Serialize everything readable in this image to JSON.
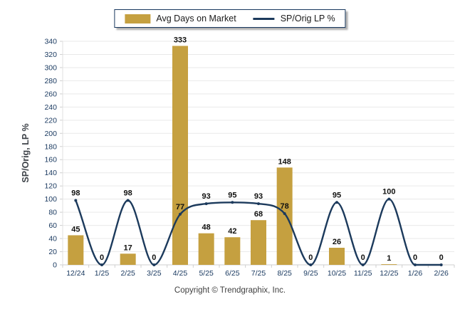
{
  "legend": {
    "items": [
      {
        "swatch": "bar-swatch",
        "label": "Avg Days on Market"
      },
      {
        "swatch": "line-swatch",
        "label": "SP/Orig LP %"
      }
    ]
  },
  "footer": {
    "copyright": "Copyright © Trendgraphix, Inc."
  },
  "chart_data": {
    "type": "bar+line",
    "categories": [
      "12/24",
      "1/25",
      "2/25",
      "3/25",
      "4/25",
      "5/25",
      "6/25",
      "7/25",
      "8/25",
      "9/25",
      "10/25",
      "11/25",
      "12/25",
      "1/26",
      "2/26"
    ],
    "series": [
      {
        "name": "Avg Days on Market",
        "type": "bar",
        "color": "#C5A040",
        "values": [
          45,
          0,
          17,
          0,
          333,
          48,
          42,
          68,
          148,
          0,
          26,
          0,
          1,
          0,
          0
        ]
      },
      {
        "name": "SP/Orig LP %",
        "type": "line",
        "color": "#1C3A5C",
        "values": [
          98,
          0,
          98,
          0,
          77,
          93,
          95,
          93,
          78,
          0,
          95,
          0,
          100,
          0,
          0
        ]
      }
    ],
    "title": "",
    "xlabel": "",
    "ylabel": "SP/Orig, LP %",
    "ylim": [
      0,
      340
    ],
    "ytick_step": 20,
    "grid": "horizontal",
    "legend_position": "top-center",
    "data_labels": true,
    "label_color": "#10100f",
    "axis_text_color": "#17375E"
  }
}
